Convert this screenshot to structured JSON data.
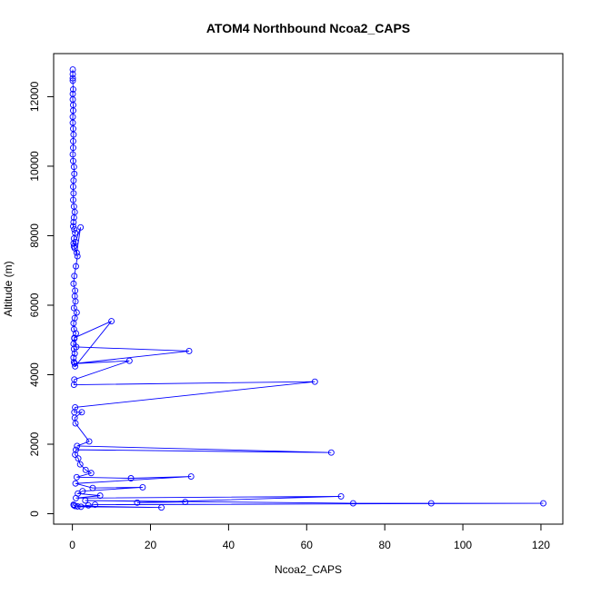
{
  "chart_data": {
    "type": "line",
    "title": "ATOM4 Northbound Ncoa2_CAPS",
    "xlabel": "Ncoa2_CAPS",
    "ylabel": "Altitude (m)",
    "xlim": [
      -4.8,
      125.6
    ],
    "ylim": [
      -300,
      13240
    ],
    "x_ticks": [
      0,
      20,
      40,
      60,
      80,
      100,
      120
    ],
    "y_ticks": [
      0,
      2000,
      4000,
      6000,
      8000,
      10000,
      12000
    ],
    "grid": false,
    "legend": "none",
    "marker": "open-circle",
    "color": "#0000ff",
    "series": [
      {
        "x": [
          0.1,
          0.1,
          0.1,
          0.1,
          0.2,
          0.1,
          0.1,
          0.2,
          0.2,
          0.1,
          0.1,
          0.2,
          0.3,
          0.2,
          0.2,
          0.1,
          0.2,
          0.4,
          0.5,
          0.3,
          0.2,
          0.3,
          0.2,
          0.4,
          0.6,
          0.4,
          0.3,
          0.2,
          0.5,
          0.7,
          0.4,
          0.3,
          0.6,
          1.1,
          2.1,
          0.8,
          0.4,
          1.3,
          0.9,
          0.5,
          0.3,
          0.7,
          0.6,
          0.8,
          0.4,
          1.1,
          0.6,
          0.3,
          0.4,
          0.9,
          0.5,
          0.3,
          0.4,
          0.6,
          0.3,
          0.4,
          0.7,
          10.0,
          0.5,
          1.0,
          29.9,
          0.6,
          14.6,
          0.5,
          0.4,
          62.1,
          0.7,
          0.5,
          2.4,
          0.6,
          0.8,
          4.3,
          1.2,
          66.3,
          0.9,
          0.7,
          1.5,
          2.0,
          3.4,
          4.8,
          1.1,
          15.0,
          30.4,
          0.8,
          5.2,
          18.0,
          2.6,
          1.4,
          7.1,
          0.9,
          68.8,
          16.6,
          28.9,
          3.3,
          71.9,
          91.9,
          120.6,
          5.8,
          4.1,
          1.3,
          2.2,
          22.8,
          0.7,
          0.4,
          0.3
        ],
        "y": [
          12780,
          12650,
          12530,
          12460,
          12210,
          12080,
          11920,
          11760,
          11600,
          11420,
          11250,
          11080,
          10910,
          10720,
          10530,
          10340,
          10150,
          9980,
          9780,
          9590,
          9410,
          9220,
          9030,
          8840,
          8680,
          8520,
          8390,
          8270,
          8180,
          8080,
          7920,
          7780,
          7640,
          7510,
          8240,
          7820,
          7690,
          7410,
          7120,
          6840,
          6620,
          6420,
          6260,
          6110,
          5920,
          5790,
          5630,
          5480,
          5310,
          5190,
          5040,
          4890,
          4740,
          4610,
          4490,
          4360,
          4240,
          5540,
          5060,
          4800,
          4680,
          4320,
          4400,
          3860,
          3710,
          3800,
          3060,
          2920,
          2920,
          2760,
          2600,
          2080,
          1950,
          1760,
          1840,
          1700,
          1590,
          1420,
          1260,
          1170,
          1050,
          1020,
          1070,
          870,
          740,
          760,
          650,
          580,
          520,
          450,
          500,
          320,
          340,
          380,
          300,
          300,
          300,
          260,
          240,
          210,
          200,
          180,
          220,
          240,
          260
        ]
      }
    ]
  }
}
